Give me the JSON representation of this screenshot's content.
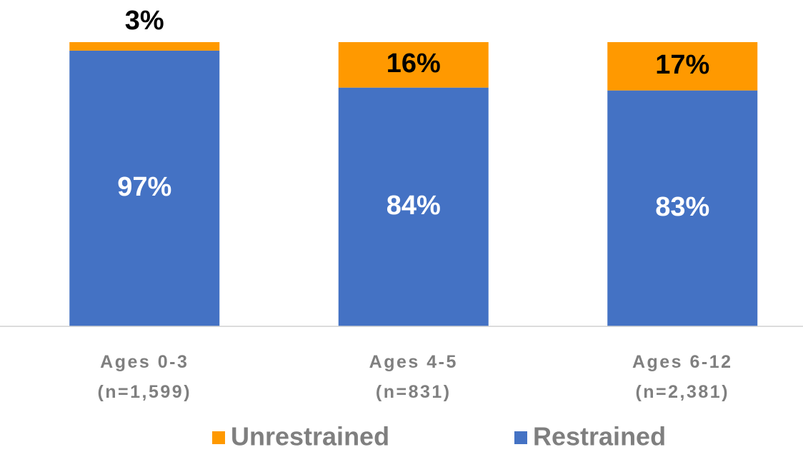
{
  "chart_data": {
    "type": "stacked_bar",
    "categories": [
      "Ages 0-3\n(n=1,599)",
      "Ages 4-5\n(n=831)",
      "Ages 6-12\n(n=2,381)"
    ],
    "series": [
      {
        "name": "Unrestrained",
        "color": "#ff9900",
        "values": [
          3,
          16,
          17
        ],
        "value_labels": [
          "3%",
          "16%",
          "17%"
        ]
      },
      {
        "name": "Restrained",
        "color": "#4472c4",
        "values": [
          97,
          84,
          83
        ],
        "value_labels": [
          "97%",
          "84%",
          "83%"
        ]
      }
    ],
    "ylim": [
      0,
      100
    ]
  }
}
